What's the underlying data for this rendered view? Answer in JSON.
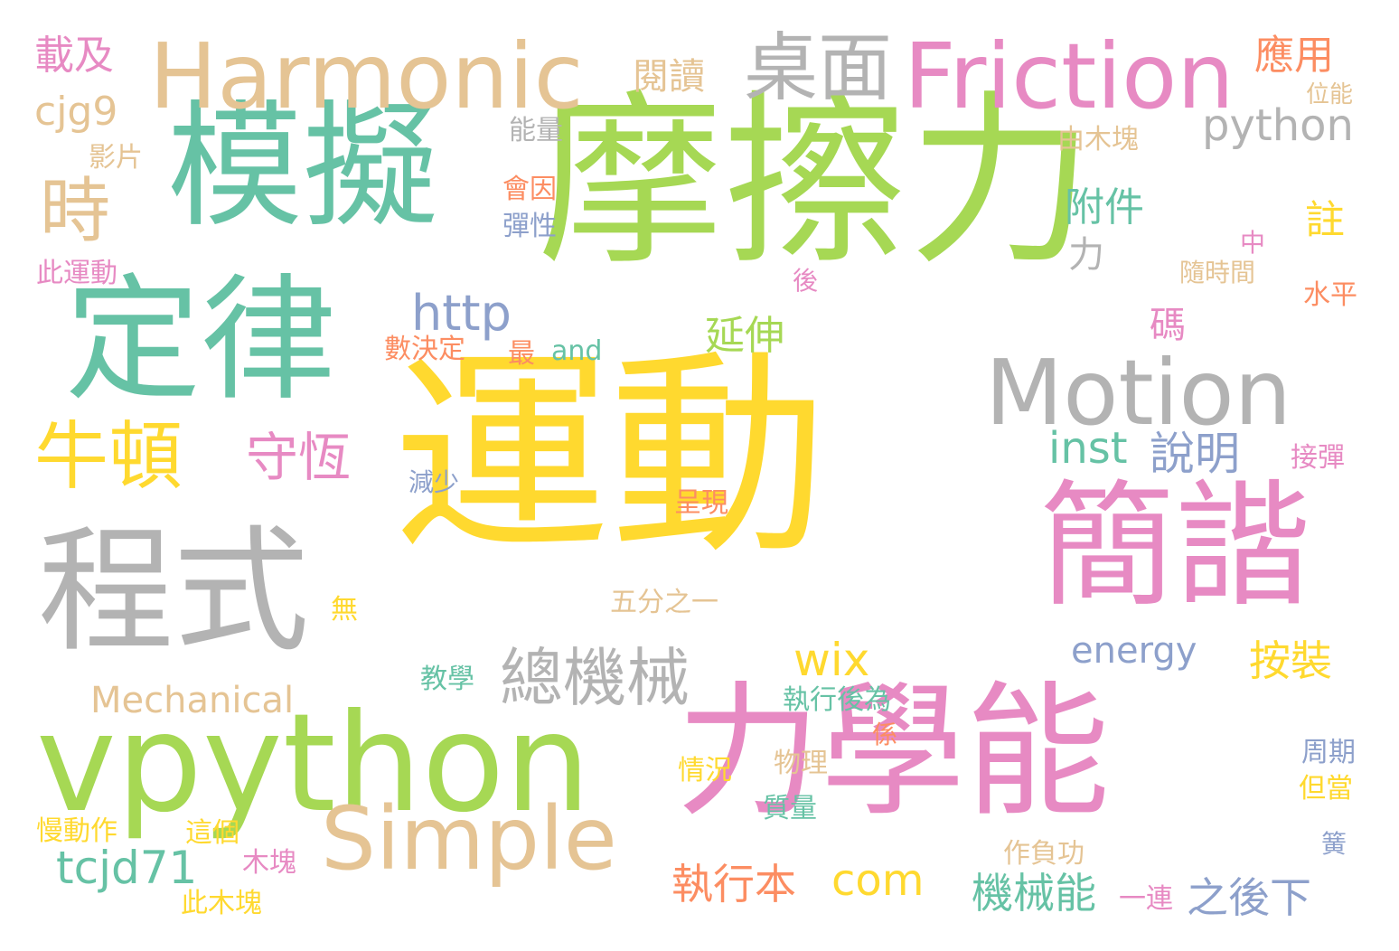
{
  "palette": {
    "yellow": "#ffd92f",
    "green": "#a6d854",
    "teal": "#66c2a5",
    "gray": "#b3b3b3",
    "pink": "#e78ac3",
    "tan": "#e5c494",
    "blue": "#8da0cb",
    "orange": "#fc8d62"
  },
  "words": [
    {
      "text": "運動",
      "color": "yellow"
    },
    {
      "text": "摩擦力",
      "color": "green"
    },
    {
      "text": "力學能",
      "color": "pink"
    },
    {
      "text": "定律",
      "color": "teal"
    },
    {
      "text": "模擬",
      "color": "teal"
    },
    {
      "text": "vpython",
      "color": "green"
    },
    {
      "text": "程式",
      "color": "gray"
    },
    {
      "text": "簡諧",
      "color": "pink"
    },
    {
      "text": "Harmonic",
      "color": "tan"
    },
    {
      "text": "Friction",
      "color": "pink"
    },
    {
      "text": "Motion",
      "color": "gray"
    },
    {
      "text": "Simple",
      "color": "tan"
    },
    {
      "text": "桌面",
      "color": "gray"
    },
    {
      "text": "牛頓",
      "color": "yellow"
    },
    {
      "text": "守恆",
      "color": "pink"
    },
    {
      "text": "總機械",
      "color": "gray"
    },
    {
      "text": "時",
      "color": "tan"
    },
    {
      "text": "python",
      "color": "gray"
    },
    {
      "text": "http",
      "color": "blue"
    },
    {
      "text": "tcjd71",
      "color": "teal"
    },
    {
      "text": "wix",
      "color": "yellow"
    },
    {
      "text": "inst",
      "color": "teal"
    },
    {
      "text": "說明",
      "color": "blue"
    },
    {
      "text": "按裝",
      "color": "yellow"
    },
    {
      "text": "Mechanical",
      "color": "tan"
    },
    {
      "text": "energy",
      "color": "blue"
    },
    {
      "text": "com",
      "color": "yellow"
    },
    {
      "text": "執行本",
      "color": "orange"
    },
    {
      "text": "機械能",
      "color": "teal"
    },
    {
      "text": "之後下",
      "color": "blue"
    },
    {
      "text": "cjg9",
      "color": "tan"
    },
    {
      "text": "附件",
      "color": "teal"
    },
    {
      "text": "延伸",
      "color": "green"
    },
    {
      "text": "閱讀",
      "color": "tan"
    },
    {
      "text": "應用",
      "color": "orange"
    },
    {
      "text": "載及",
      "color": "pink"
    },
    {
      "text": "註",
      "color": "yellow"
    },
    {
      "text": "碼",
      "color": "pink"
    },
    {
      "text": "力",
      "color": "gray"
    },
    {
      "text": "能量",
      "color": "gray"
    },
    {
      "text": "影片",
      "color": "tan"
    },
    {
      "text": "會因",
      "color": "orange"
    },
    {
      "text": "彈性",
      "color": "blue"
    },
    {
      "text": "此運動",
      "color": "pink"
    },
    {
      "text": "由木塊",
      "color": "tan"
    },
    {
      "text": "位能",
      "color": "tan"
    },
    {
      "text": "中",
      "color": "pink"
    },
    {
      "text": "隨時間",
      "color": "tan"
    },
    {
      "text": "水平",
      "color": "orange"
    },
    {
      "text": "後",
      "color": "pink"
    },
    {
      "text": "數決定",
      "color": "orange"
    },
    {
      "text": "最",
      "color": "orange"
    },
    {
      "text": "and",
      "color": "teal"
    },
    {
      "text": "減少",
      "color": "blue"
    },
    {
      "text": "接彈",
      "color": "pink"
    },
    {
      "text": "呈現",
      "color": "orange"
    },
    {
      "text": "五分之一",
      "color": "tan"
    },
    {
      "text": "無",
      "color": "yellow"
    },
    {
      "text": "教學",
      "color": "teal"
    },
    {
      "text": "執行後為",
      "color": "teal"
    },
    {
      "text": "係",
      "color": "orange"
    },
    {
      "text": "周期",
      "color": "blue"
    },
    {
      "text": "情況",
      "color": "yellow"
    },
    {
      "text": "物理",
      "color": "tan"
    },
    {
      "text": "但當",
      "color": "yellow"
    },
    {
      "text": "質量",
      "color": "teal"
    },
    {
      "text": "慢動作",
      "color": "yellow"
    },
    {
      "text": "這個",
      "color": "yellow"
    },
    {
      "text": "木塊",
      "color": "pink"
    },
    {
      "text": "此木塊",
      "color": "yellow"
    },
    {
      "text": "作負功",
      "color": "tan"
    },
    {
      "text": "一連",
      "color": "pink"
    },
    {
      "text": "簧",
      "color": "blue"
    }
  ]
}
